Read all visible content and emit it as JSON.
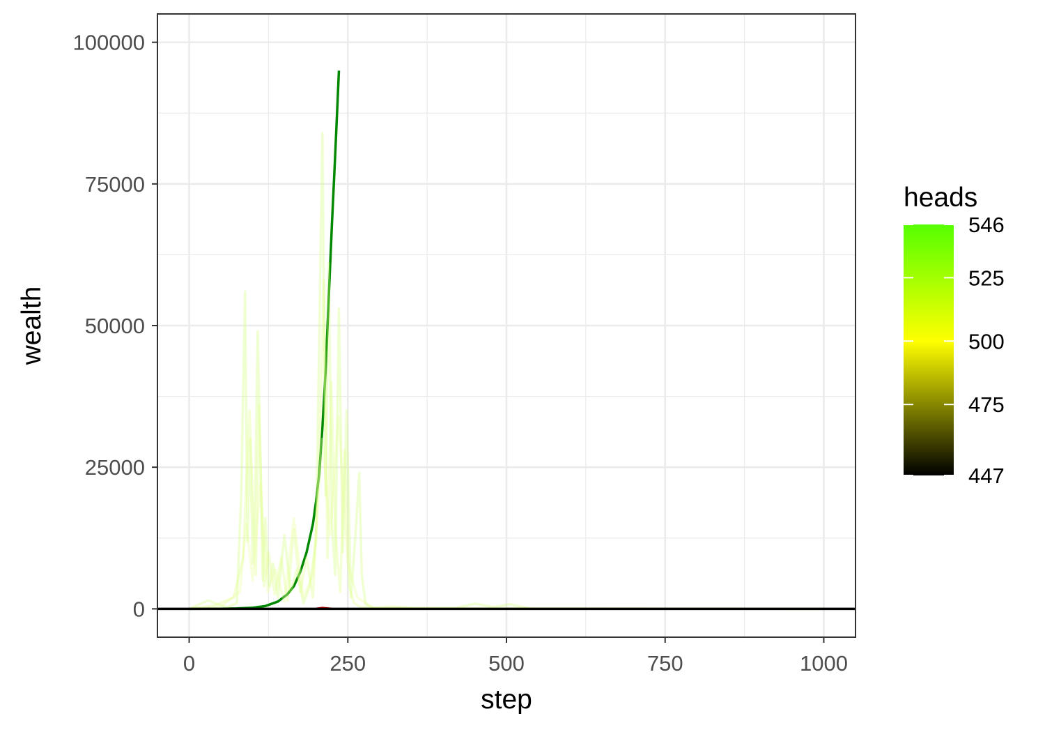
{
  "chart_data": {
    "type": "line",
    "xlabel": "step",
    "ylabel": "wealth",
    "xlim": [
      -50,
      1050
    ],
    "ylim": [
      -5000,
      105000
    ],
    "x_ticks": [
      0,
      250,
      500,
      750,
      1000
    ],
    "x_tick_labels": [
      "0",
      "250",
      "500",
      "750",
      "1000"
    ],
    "y_ticks": [
      0,
      25000,
      50000,
      75000,
      100000
    ],
    "y_tick_labels": [
      "0",
      "25000",
      "50000",
      "75000",
      "100000"
    ],
    "grid": true,
    "legend": {
      "title": "heads",
      "position": "right",
      "type": "colorbar",
      "min": 447,
      "max": 546,
      "breaks": [
        447,
        475,
        500,
        525,
        546
      ],
      "break_labels": [
        "447",
        "475",
        "500",
        "525",
        "546"
      ],
      "colors": [
        {
          "value": 447,
          "color": "#000000"
        },
        {
          "value": 500,
          "color": "#ffff00"
        },
        {
          "value": 546,
          "color": "#55ff00"
        }
      ]
    },
    "series": [
      {
        "heads": 546,
        "color": "#008800",
        "opacity": 1,
        "x": [
          0,
          25,
          50,
          75,
          100,
          120,
          140,
          155,
          165,
          175,
          185,
          195,
          200,
          205,
          210,
          215,
          220,
          225,
          230,
          236
        ],
        "y": [
          0,
          3,
          20,
          80,
          200,
          500,
          1300,
          2600,
          4000,
          6500,
          10000,
          15000,
          19000,
          24000,
          32000,
          42000,
          55000,
          68000,
          80000,
          95000
        ]
      },
      {
        "heads": 525,
        "color": "#d4ff7a",
        "opacity": 0.35,
        "x": [
          0,
          30,
          45,
          60,
          75,
          82,
          88,
          92,
          96,
          100,
          104,
          108,
          112,
          116,
          120,
          126,
          132,
          140,
          150,
          160,
          170,
          180,
          190,
          200,
          210,
          215,
          220,
          225,
          230,
          236,
          242,
          248,
          255,
          262,
          268,
          272,
          278,
          290,
          320,
          360,
          420,
          450,
          480,
          505,
          540,
          1000
        ],
        "y": [
          0,
          1500,
          800,
          300,
          1000,
          20000,
          56000,
          12000,
          30000,
          8000,
          19000,
          49000,
          27000,
          5000,
          16000,
          4000,
          8000,
          2000,
          13000,
          3000,
          7000,
          1000,
          4000,
          12000,
          84000,
          20000,
          61000,
          15000,
          6000,
          53000,
          10000,
          35000,
          2000,
          13000,
          24000,
          6000,
          800,
          200,
          400,
          100,
          150,
          900,
          300,
          800,
          0,
          0
        ]
      },
      {
        "heads": 520,
        "color": "#e0ff88",
        "opacity": 0.35,
        "x": [
          0,
          40,
          70,
          85,
          95,
          105,
          110,
          118,
          125,
          135,
          145,
          155,
          165,
          175,
          185,
          195,
          205,
          212,
          218,
          224,
          230,
          238,
          245,
          252,
          260,
          270,
          300,
          400,
          500,
          1000
        ],
        "y": [
          0,
          600,
          2000,
          9000,
          35000,
          6000,
          36000,
          4000,
          10000,
          2500,
          9000,
          1500,
          14000,
          3000,
          9000,
          2000,
          26000,
          58000,
          9000,
          40000,
          14000,
          3000,
          28000,
          4000,
          1000,
          300,
          100,
          50,
          0,
          0
        ]
      },
      {
        "heads": 515,
        "color": "#e8ff9c",
        "opacity": 0.35,
        "x": [
          0,
          50,
          80,
          90,
          100,
          112,
          124,
          136,
          150,
          165,
          180,
          195,
          210,
          222,
          235,
          250,
          265,
          290,
          1000
        ],
        "y": [
          0,
          400,
          3000,
          15000,
          5000,
          22000,
          3000,
          7000,
          1200,
          16000,
          2000,
          6000,
          30000,
          13000,
          34000,
          8000,
          2000,
          150,
          0
        ]
      },
      {
        "heads": 462,
        "color": "#cc0000",
        "opacity": 1,
        "x": [
          200,
          210,
          220,
          225
        ],
        "y": [
          0,
          150,
          50,
          0
        ]
      },
      {
        "heads": 447,
        "color": "#000000",
        "opacity": 1,
        "x": [
          -50,
          1050
        ],
        "y": [
          0,
          0
        ]
      }
    ]
  }
}
